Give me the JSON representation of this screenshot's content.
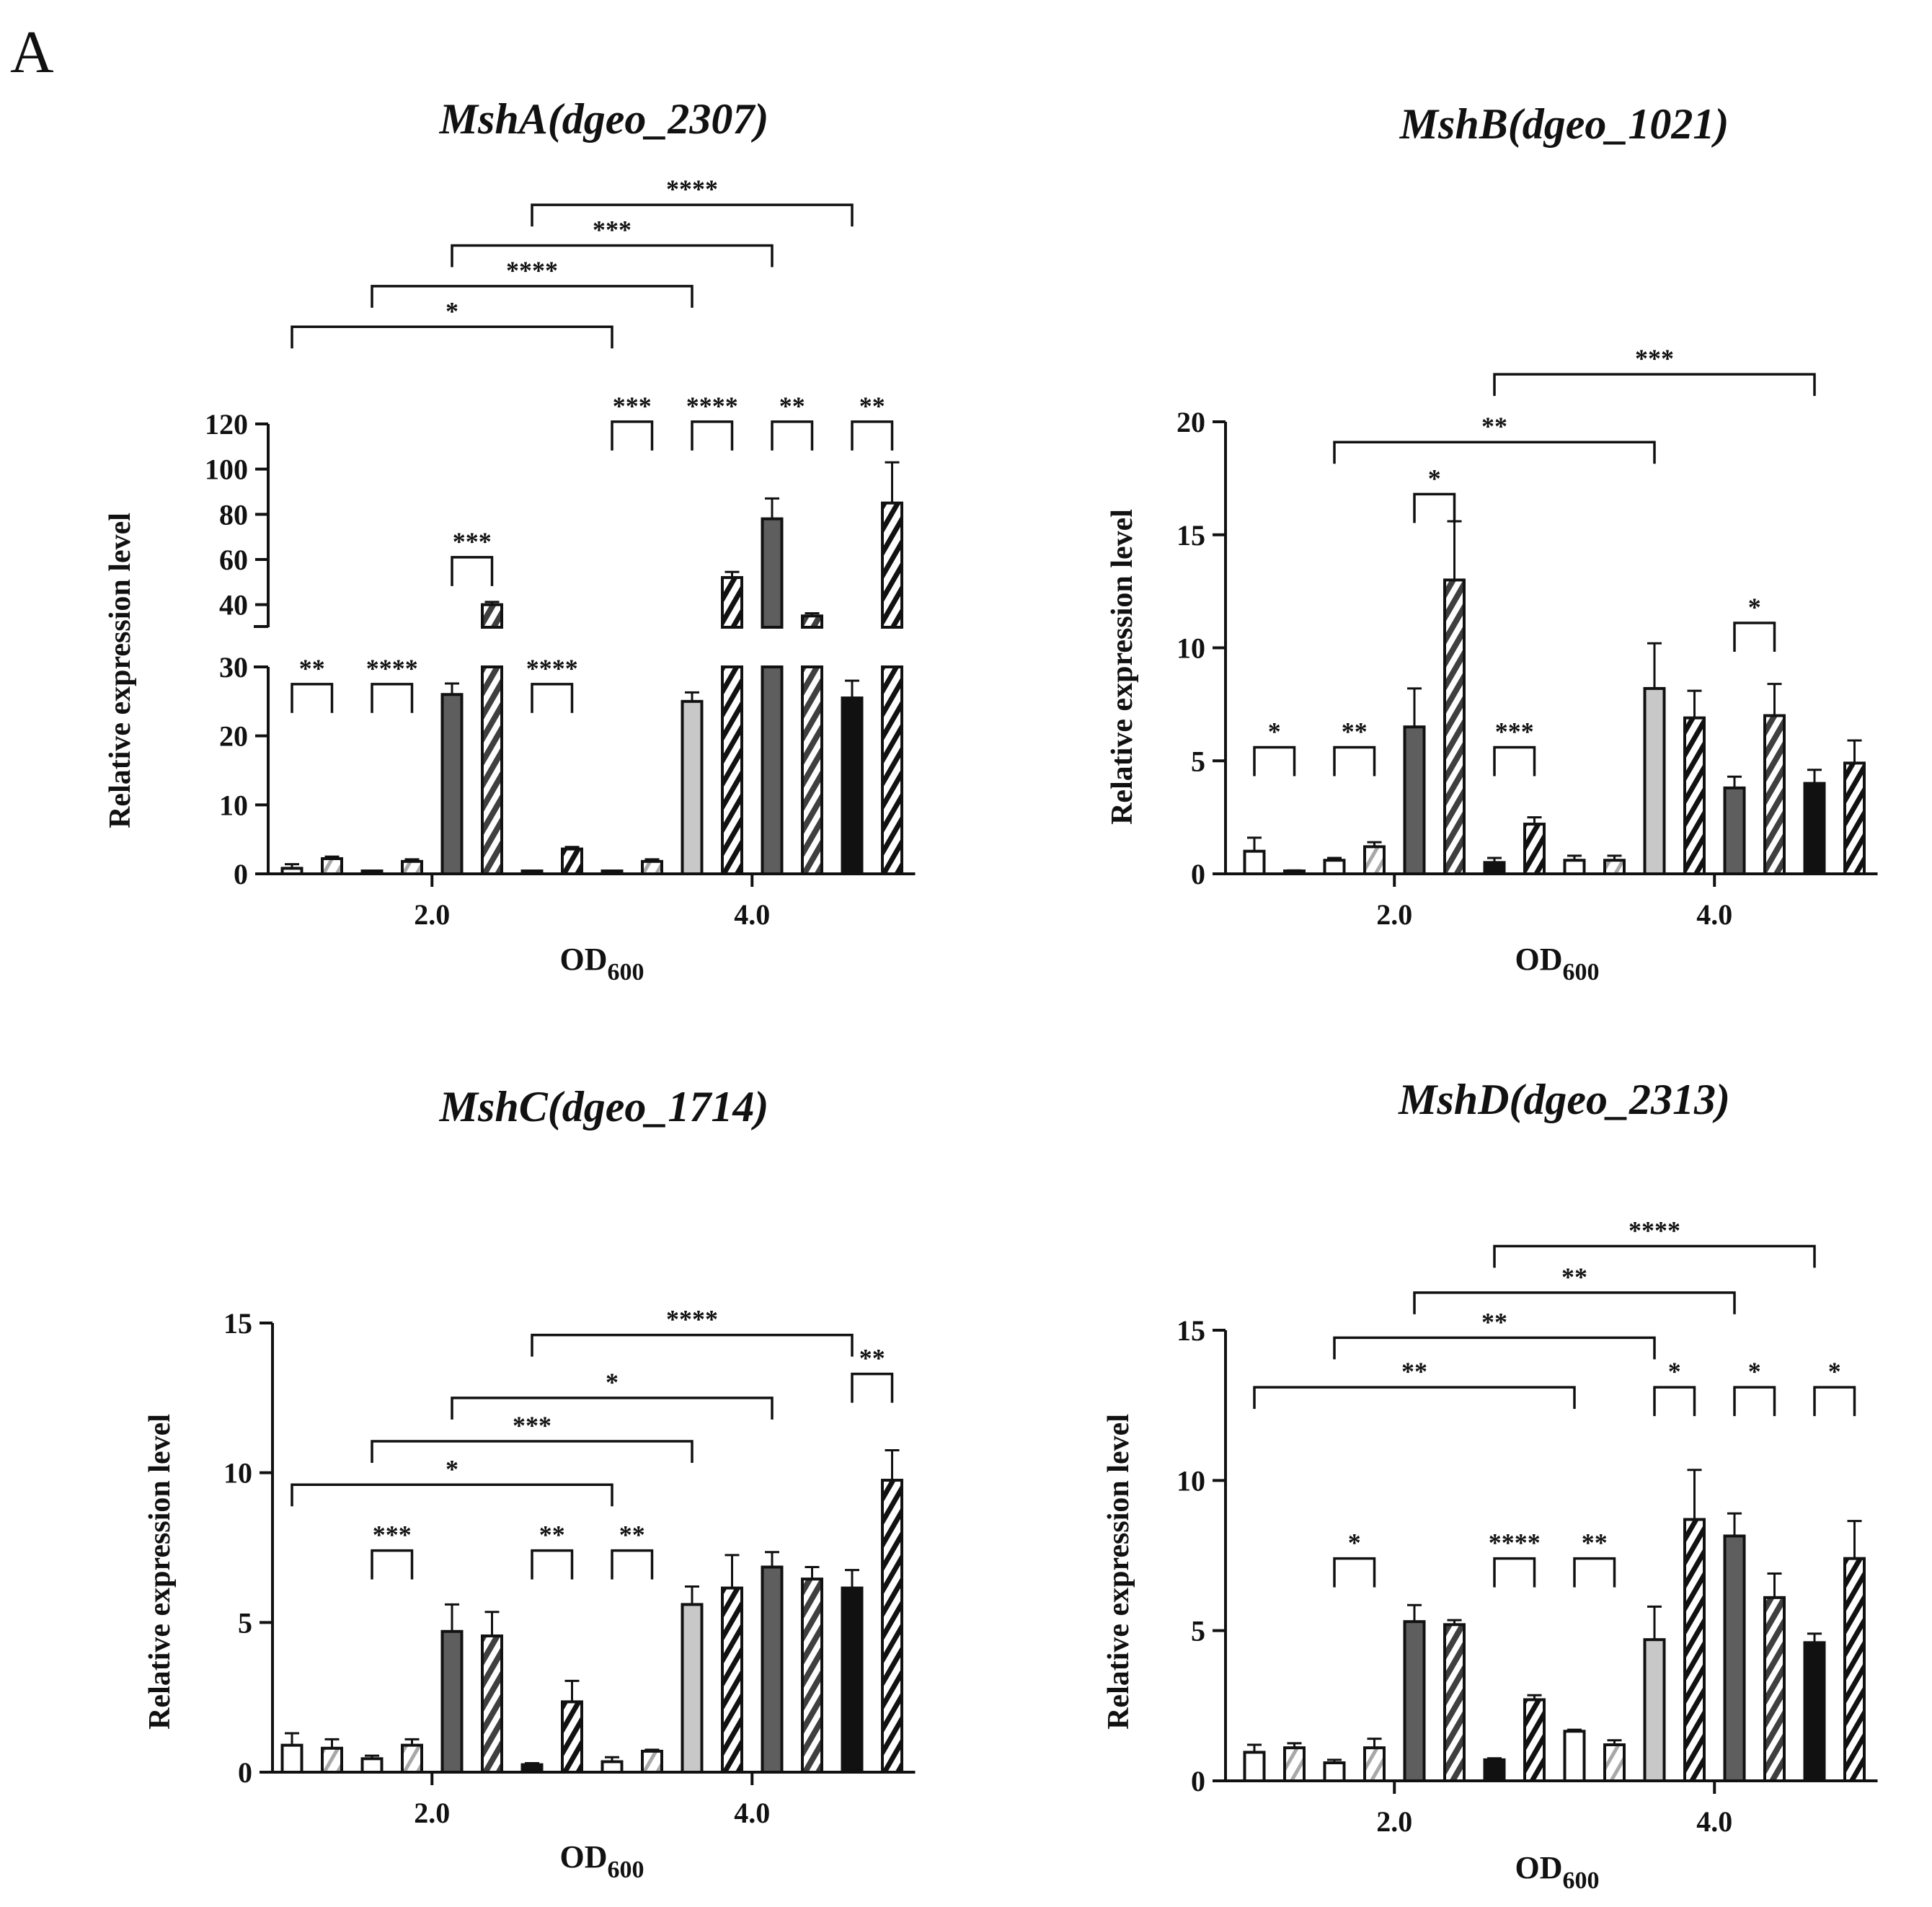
{
  "figure": {
    "panel_label": "A"
  },
  "colors": {
    "white": "#ffffff",
    "light": "#c8c8c8",
    "dark": "#5e5e5e",
    "black": "#111111"
  },
  "chart_data": [
    {
      "type": "bar",
      "title": "MshA(dgeo_2307)",
      "ylabel": "Relative expression level",
      "xlabel": "OD",
      "xlabel_sub": "600",
      "xticks": [
        {
          "label": "2.0",
          "at": 3.5
        },
        {
          "label": "4.0",
          "at": 11.5
        }
      ],
      "ylim": [
        0,
        120
      ],
      "axis_break": {
        "lower": [
          0,
          30
        ],
        "upper": [
          30,
          120
        ]
      },
      "yticks": [
        0,
        10,
        20,
        30,
        40,
        60,
        80,
        100,
        120
      ],
      "ytick_labels": [
        "0",
        "10",
        "20",
        "30",
        "40",
        "60",
        "80",
        "100",
        "120"
      ],
      "bars": [
        {
          "value": 0.8,
          "error": 0.6,
          "fill": "white",
          "hatch": "none"
        },
        {
          "value": 2.2,
          "error": 0.3,
          "fill": "white",
          "hatch": "light"
        },
        {
          "value": 0,
          "error": 0,
          "fill": "white",
          "hatch": "none"
        },
        {
          "value": 1.8,
          "error": 0.3,
          "fill": "white",
          "hatch": "light"
        },
        {
          "value": 26,
          "error": 1.6,
          "fill": "dark",
          "hatch": "none"
        },
        {
          "value": 40,
          "error": 1.2,
          "fill": "dark",
          "hatch": "light"
        },
        {
          "value": 0.3,
          "error": 0,
          "fill": "white",
          "hatch": "none"
        },
        {
          "value": 3.6,
          "error": 0.3,
          "fill": "white",
          "hatch": "dark"
        },
        {
          "value": 0,
          "error": 0,
          "fill": "white",
          "hatch": "none"
        },
        {
          "value": 1.8,
          "error": 0.3,
          "fill": "white",
          "hatch": "light"
        },
        {
          "value": 25,
          "error": 1.3,
          "fill": "light",
          "hatch": "none"
        },
        {
          "value": 52,
          "error": 2.5,
          "fill": "light",
          "hatch": "dark"
        },
        {
          "value": 78,
          "error": 9,
          "fill": "dark",
          "hatch": "none"
        },
        {
          "value": 35,
          "error": 1.2,
          "fill": "dark",
          "hatch": "light"
        },
        {
          "value": 25.5,
          "error": 2.5,
          "fill": "black",
          "hatch": "none"
        },
        {
          "value": 85,
          "error": 18,
          "fill": "white",
          "hatch": "dark"
        }
      ],
      "brackets": [
        {
          "from": 0,
          "to": 1,
          "y": 27.5,
          "label": "**"
        },
        {
          "from": 2,
          "to": 3,
          "y": 27.5,
          "label": "****"
        },
        {
          "from": 4,
          "to": 5,
          "y": 61,
          "label": "***"
        },
        {
          "from": 6,
          "to": 7,
          "y": 27.5,
          "label": "****"
        },
        {
          "from": 8,
          "to": 9,
          "y": 121,
          "label": "***"
        },
        {
          "from": 10,
          "to": 11,
          "y": 121,
          "label": "****"
        },
        {
          "from": 12,
          "to": 13,
          "y": 121,
          "label": "**"
        },
        {
          "from": 14,
          "to": 15,
          "y": 121,
          "label": "**"
        },
        {
          "from": 0,
          "to": 8,
          "y": 163,
          "label": "*",
          "flat": true
        },
        {
          "from": 2,
          "to": 10,
          "y": 181,
          "label": "****",
          "flat": true
        },
        {
          "from": 4,
          "to": 12,
          "y": 199,
          "label": "***",
          "flat": true
        },
        {
          "from": 6,
          "to": 14,
          "y": 217,
          "label": "****",
          "flat": true
        }
      ]
    },
    {
      "type": "bar",
      "title": "MshB(dgeo_1021)",
      "ylabel": "Relative expression level",
      "xlabel": "OD",
      "xlabel_sub": "600",
      "xticks": [
        {
          "label": "2.0",
          "at": 3.5
        },
        {
          "label": "4.0",
          "at": 11.5
        }
      ],
      "ylim": [
        0,
        20
      ],
      "yticks": [
        0,
        5,
        10,
        15,
        20
      ],
      "ytick_labels": [
        "0",
        "5",
        "10",
        "15",
        "20"
      ],
      "bars": [
        {
          "value": 1.0,
          "error": 0.6,
          "fill": "white",
          "hatch": "none"
        },
        {
          "value": 0.05,
          "error": 0.1,
          "fill": "white",
          "hatch": "light"
        },
        {
          "value": 0.6,
          "error": 0.1,
          "fill": "white",
          "hatch": "none"
        },
        {
          "value": 1.2,
          "error": 0.2,
          "fill": "white",
          "hatch": "light"
        },
        {
          "value": 6.5,
          "error": 1.7,
          "fill": "dark",
          "hatch": "none"
        },
        {
          "value": 13.0,
          "error": 2.6,
          "fill": "dark",
          "hatch": "light"
        },
        {
          "value": 0.5,
          "error": 0.2,
          "fill": "black",
          "hatch": "none"
        },
        {
          "value": 2.2,
          "error": 0.3,
          "fill": "white",
          "hatch": "dark"
        },
        {
          "value": 0.6,
          "error": 0.2,
          "fill": "white",
          "hatch": "none"
        },
        {
          "value": 0.6,
          "error": 0.2,
          "fill": "white",
          "hatch": "light"
        },
        {
          "value": 8.2,
          "error": 2.0,
          "fill": "light",
          "hatch": "none"
        },
        {
          "value": 6.9,
          "error": 1.2,
          "fill": "light",
          "hatch": "dark"
        },
        {
          "value": 3.8,
          "error": 0.5,
          "fill": "dark",
          "hatch": "none"
        },
        {
          "value": 7.0,
          "error": 1.4,
          "fill": "dark",
          "hatch": "light"
        },
        {
          "value": 4.0,
          "error": 0.6,
          "fill": "black",
          "hatch": "none"
        },
        {
          "value": 4.9,
          "error": 1.0,
          "fill": "white",
          "hatch": "dark"
        }
      ],
      "brackets": [
        {
          "from": 0,
          "to": 1,
          "y": 5.6,
          "label": "*"
        },
        {
          "from": 2,
          "to": 3,
          "y": 5.6,
          "label": "**"
        },
        {
          "from": 4,
          "to": 5,
          "y": 16.8,
          "label": "*"
        },
        {
          "from": 6,
          "to": 7,
          "y": 5.6,
          "label": "***"
        },
        {
          "from": 12,
          "to": 13,
          "y": 11.1,
          "label": "*"
        },
        {
          "from": 2,
          "to": 10,
          "y": 19.1,
          "label": "**",
          "flat": true
        },
        {
          "from": 6,
          "to": 14,
          "y": 22.1,
          "label": "***",
          "flat": true
        }
      ]
    },
    {
      "type": "bar",
      "title": "MshC(dgeo_1714)",
      "ylabel": "Relative expression level",
      "xlabel": "OD",
      "xlabel_sub": "600",
      "xticks": [
        {
          "label": "2.0",
          "at": 3.5
        },
        {
          "label": "4.0",
          "at": 11.5
        }
      ],
      "ylim": [
        0,
        15
      ],
      "yticks": [
        0,
        5,
        10,
        15
      ],
      "ytick_labels": [
        "0",
        "5",
        "10",
        "15"
      ],
      "bars": [
        {
          "value": 0.9,
          "error": 0.4,
          "fill": "white",
          "hatch": "none"
        },
        {
          "value": 0.8,
          "error": 0.3,
          "fill": "white",
          "hatch": "light"
        },
        {
          "value": 0.45,
          "error": 0.1,
          "fill": "white",
          "hatch": "none"
        },
        {
          "value": 0.9,
          "error": 0.2,
          "fill": "white",
          "hatch": "light"
        },
        {
          "value": 4.7,
          "error": 0.9,
          "fill": "dark",
          "hatch": "none"
        },
        {
          "value": 4.55,
          "error": 0.8,
          "fill": "dark",
          "hatch": "light"
        },
        {
          "value": 0.25,
          "error": 0.05,
          "fill": "black",
          "hatch": "none"
        },
        {
          "value": 2.35,
          "error": 0.7,
          "fill": "white",
          "hatch": "dark"
        },
        {
          "value": 0.35,
          "error": 0.15,
          "fill": "white",
          "hatch": "none"
        },
        {
          "value": 0.7,
          "error": 0.05,
          "fill": "white",
          "hatch": "light"
        },
        {
          "value": 5.6,
          "error": 0.6,
          "fill": "light",
          "hatch": "none"
        },
        {
          "value": 6.15,
          "error": 1.1,
          "fill": "light",
          "hatch": "dark"
        },
        {
          "value": 6.85,
          "error": 0.5,
          "fill": "dark",
          "hatch": "none"
        },
        {
          "value": 6.45,
          "error": 0.4,
          "fill": "dark",
          "hatch": "light"
        },
        {
          "value": 6.15,
          "error": 0.6,
          "fill": "black",
          "hatch": "none"
        },
        {
          "value": 9.75,
          "error": 1.0,
          "fill": "white",
          "hatch": "dark"
        }
      ],
      "brackets": [
        {
          "from": 2,
          "to": 3,
          "y": 7.4,
          "label": "***"
        },
        {
          "from": 6,
          "to": 7,
          "y": 7.4,
          "label": "**"
        },
        {
          "from": 8,
          "to": 9,
          "y": 7.4,
          "label": "**"
        },
        {
          "from": 14,
          "to": 15,
          "y": 13.3,
          "label": "**"
        },
        {
          "from": 0,
          "to": 8,
          "y": 9.6,
          "label": "*",
          "flat": true
        },
        {
          "from": 2,
          "to": 10,
          "y": 11.05,
          "label": "***",
          "flat": true
        },
        {
          "from": 4,
          "to": 12,
          "y": 12.5,
          "label": "*",
          "flat": true
        },
        {
          "from": 6,
          "to": 14,
          "y": 14.6,
          "label": "****",
          "flat": true
        }
      ]
    },
    {
      "type": "bar",
      "title": "MshD(dgeo_2313)",
      "ylabel": "Relative expression level",
      "xlabel": "OD",
      "xlabel_sub": "600",
      "xticks": [
        {
          "label": "2.0",
          "at": 3.5
        },
        {
          "label": "4.0",
          "at": 11.5
        }
      ],
      "ylim": [
        0,
        15
      ],
      "yticks": [
        0,
        5,
        10,
        15
      ],
      "ytick_labels": [
        "0",
        "5",
        "10",
        "15"
      ],
      "bars": [
        {
          "value": 0.95,
          "error": 0.25,
          "fill": "white",
          "hatch": "none"
        },
        {
          "value": 1.1,
          "error": 0.15,
          "fill": "white",
          "hatch": "light"
        },
        {
          "value": 0.6,
          "error": 0.1,
          "fill": "white",
          "hatch": "none"
        },
        {
          "value": 1.1,
          "error": 0.3,
          "fill": "white",
          "hatch": "light"
        },
        {
          "value": 5.3,
          "error": 0.55,
          "fill": "dark",
          "hatch": "none"
        },
        {
          "value": 5.2,
          "error": 0.15,
          "fill": "dark",
          "hatch": "light"
        },
        {
          "value": 0.7,
          "error": 0.05,
          "fill": "black",
          "hatch": "none"
        },
        {
          "value": 2.7,
          "error": 0.15,
          "fill": "white",
          "hatch": "dark"
        },
        {
          "value": 1.65,
          "error": 0.05,
          "fill": "white",
          "hatch": "none"
        },
        {
          "value": 1.2,
          "error": 0.15,
          "fill": "white",
          "hatch": "light"
        },
        {
          "value": 4.7,
          "error": 1.1,
          "fill": "light",
          "hatch": "none"
        },
        {
          "value": 8.7,
          "error": 1.65,
          "fill": "light",
          "hatch": "dark"
        },
        {
          "value": 8.15,
          "error": 0.75,
          "fill": "dark",
          "hatch": "none"
        },
        {
          "value": 6.1,
          "error": 0.8,
          "fill": "dark",
          "hatch": "light"
        },
        {
          "value": 4.6,
          "error": 0.3,
          "fill": "black",
          "hatch": "none"
        },
        {
          "value": 7.4,
          "error": 1.25,
          "fill": "white",
          "hatch": "dark"
        }
      ],
      "brackets": [
        {
          "from": 2,
          "to": 3,
          "y": 7.4,
          "label": "*"
        },
        {
          "from": 6,
          "to": 7,
          "y": 7.4,
          "label": "****"
        },
        {
          "from": 8,
          "to": 9,
          "y": 7.4,
          "label": "**"
        },
        {
          "from": 10,
          "to": 11,
          "y": 13.1,
          "label": "*"
        },
        {
          "from": 12,
          "to": 13,
          "y": 13.1,
          "label": "*"
        },
        {
          "from": 14,
          "to": 15,
          "y": 13.1,
          "label": "*"
        },
        {
          "from": 0,
          "to": 8,
          "y": 13.1,
          "label": "**",
          "flat": true
        },
        {
          "from": 2,
          "to": 10,
          "y": 14.75,
          "label": "**",
          "flat": true
        },
        {
          "from": 4,
          "to": 12,
          "y": 16.25,
          "label": "**",
          "flat": true
        },
        {
          "from": 6,
          "to": 14,
          "y": 17.8,
          "label": "****",
          "flat": true
        }
      ]
    }
  ]
}
